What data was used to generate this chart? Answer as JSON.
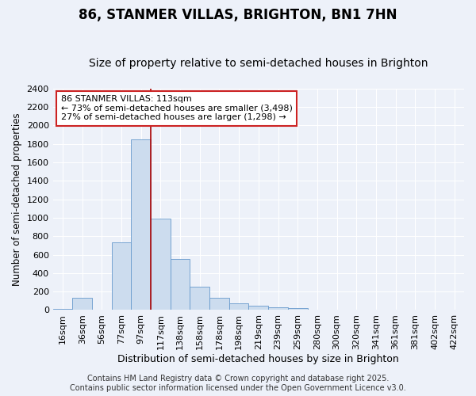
{
  "title": "86, STANMER VILLAS, BRIGHTON, BN1 7HN",
  "subtitle": "Size of property relative to semi-detached houses in Brighton",
  "xlabel": "Distribution of semi-detached houses by size in Brighton",
  "ylabel": "Number of semi-detached properties",
  "footer": "Contains HM Land Registry data © Crown copyright and database right 2025.\nContains public sector information licensed under the Open Government Licence v3.0.",
  "bin_labels": [
    "16sqm",
    "36sqm",
    "56sqm",
    "77sqm",
    "97sqm",
    "117sqm",
    "138sqm",
    "158sqm",
    "178sqm",
    "198sqm",
    "219sqm",
    "239sqm",
    "259sqm",
    "280sqm",
    "300sqm",
    "320sqm",
    "341sqm",
    "361sqm",
    "381sqm",
    "402sqm",
    "422sqm"
  ],
  "bar_heights": [
    10,
    130,
    0,
    730,
    1850,
    990,
    550,
    250,
    130,
    70,
    50,
    30,
    25,
    0,
    0,
    0,
    0,
    0,
    0,
    0,
    5
  ],
  "bar_color": "#ccdcee",
  "bar_edge_color": "#6699cc",
  "background_color": "#edf1f9",
  "grid_color": "#ffffff",
  "vline_x_index": 5,
  "vline_color": "#aa0000",
  "annotation_line1": "86 STANMER VILLAS: 113sqm",
  "annotation_line2": "← 73% of semi-detached houses are smaller (3,498)",
  "annotation_line3": "27% of semi-detached houses are larger (1,298) →",
  "annotation_box_color": "#ffffff",
  "annotation_box_edge": "#cc2222",
  "ylim": [
    0,
    2400
  ],
  "yticks": [
    0,
    200,
    400,
    600,
    800,
    1000,
    1200,
    1400,
    1600,
    1800,
    2000,
    2200,
    2400
  ],
  "title_fontsize": 12,
  "subtitle_fontsize": 10,
  "xlabel_fontsize": 9,
  "ylabel_fontsize": 8.5,
  "tick_fontsize": 8,
  "annot_fontsize": 8,
  "footer_fontsize": 7
}
